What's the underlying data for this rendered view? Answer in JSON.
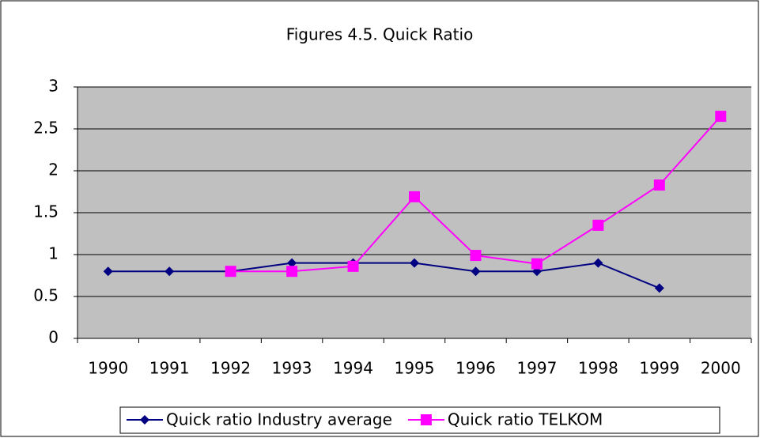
{
  "chart_data": {
    "type": "line",
    "title": "Figures 4.5. Quick Ratio",
    "categories": [
      "1990",
      "1991",
      "1992",
      "1993",
      "1994",
      "1995",
      "1996",
      "1997",
      "1998",
      "1999",
      "2000"
    ],
    "series": [
      {
        "name": "Quick ratio Industry average",
        "color": "#000080",
        "marker": "diamond",
        "values": [
          0.8,
          0.8,
          0.8,
          0.9,
          0.9,
          0.9,
          0.8,
          0.8,
          0.9,
          0.6,
          null
        ]
      },
      {
        "name": "Quick ratio TELKOM",
        "color": "#ff00ff",
        "marker": "square",
        "values": [
          null,
          null,
          0.8,
          0.8,
          0.86,
          1.69,
          0.99,
          0.89,
          1.35,
          1.83,
          2.65
        ]
      }
    ],
    "ylim": [
      0,
      3
    ],
    "yticks": [
      0,
      0.5,
      1,
      1.5,
      2,
      2.5,
      3
    ],
    "grid": true,
    "plot_background": "#c0c0c0",
    "legend": "bottom"
  }
}
